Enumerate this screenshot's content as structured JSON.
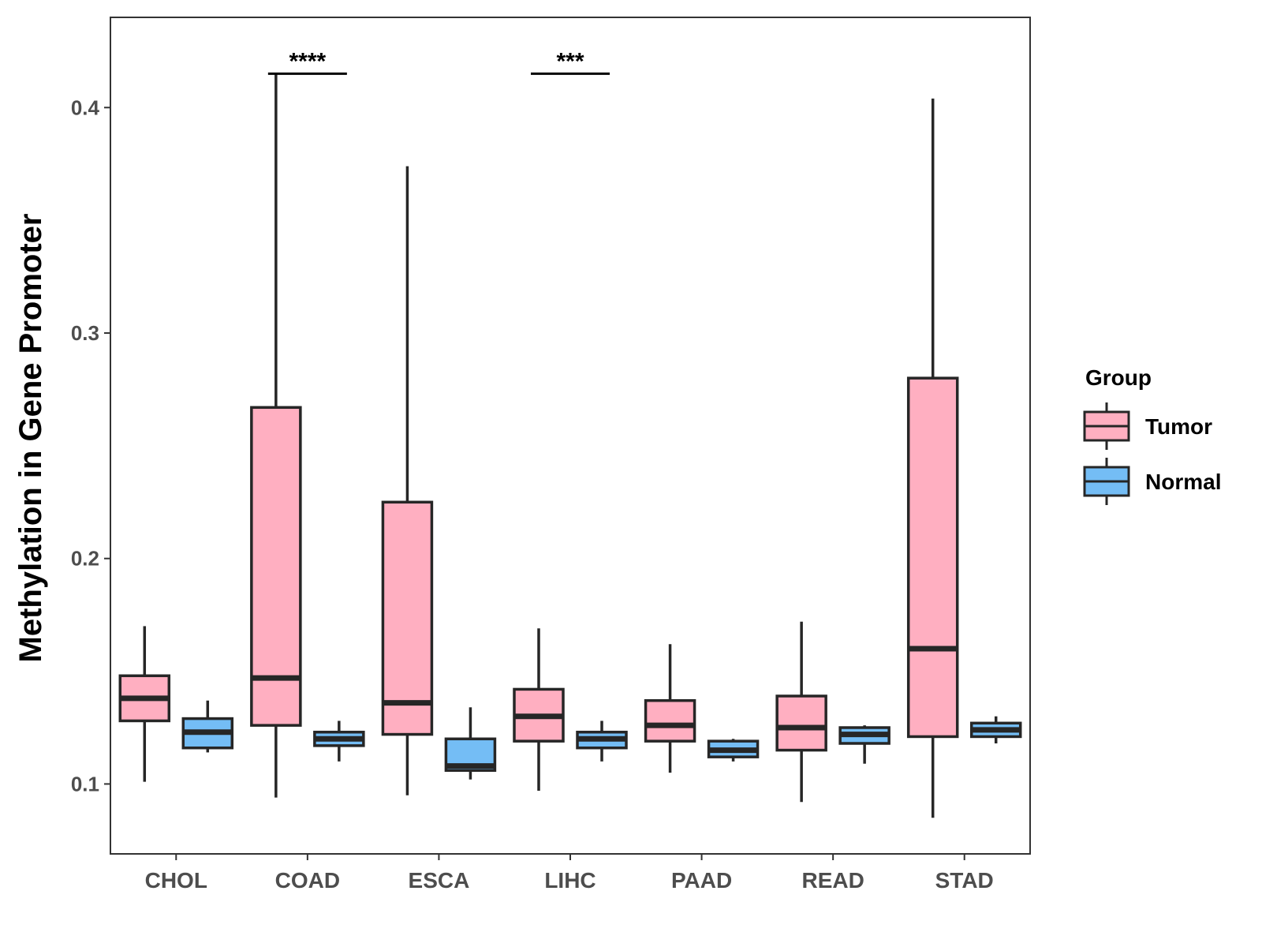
{
  "chart_data": {
    "type": "boxplot",
    "title": "",
    "xlabel": "",
    "ylabel": "Methylation in Gene Promoter",
    "ylim": [
      0.069,
      0.44
    ],
    "yticks": [
      0.1,
      0.2,
      0.3,
      0.4
    ],
    "ytick_labels": [
      "0.1",
      "0.2",
      "0.3",
      "0.4"
    ],
    "categories": [
      "CHOL",
      "COAD",
      "ESCA",
      "LIHC",
      "PAAD",
      "READ",
      "STAD"
    ],
    "series": [
      {
        "name": "Tumor",
        "color": "#ffafc1",
        "boxes": [
          {
            "min": 0.101,
            "q1": 0.128,
            "median": 0.138,
            "q3": 0.148,
            "max": 0.17
          },
          {
            "min": 0.094,
            "q1": 0.126,
            "median": 0.147,
            "q3": 0.267,
            "max": 0.415
          },
          {
            "min": 0.095,
            "q1": 0.122,
            "median": 0.136,
            "q3": 0.225,
            "max": 0.374
          },
          {
            "min": 0.097,
            "q1": 0.119,
            "median": 0.13,
            "q3": 0.142,
            "max": 0.169
          },
          {
            "min": 0.105,
            "q1": 0.119,
            "median": 0.126,
            "q3": 0.137,
            "max": 0.162
          },
          {
            "min": 0.092,
            "q1": 0.115,
            "median": 0.125,
            "q3": 0.139,
            "max": 0.172
          },
          {
            "min": 0.085,
            "q1": 0.121,
            "median": 0.16,
            "q3": 0.28,
            "max": 0.404
          }
        ]
      },
      {
        "name": "Normal",
        "color": "#74bdf5",
        "boxes": [
          {
            "min": 0.114,
            "q1": 0.116,
            "median": 0.123,
            "q3": 0.129,
            "max": 0.137
          },
          {
            "min": 0.11,
            "q1": 0.117,
            "median": 0.12,
            "q3": 0.123,
            "max": 0.128
          },
          {
            "min": 0.102,
            "q1": 0.106,
            "median": 0.108,
            "q3": 0.12,
            "max": 0.134
          },
          {
            "min": 0.11,
            "q1": 0.116,
            "median": 0.12,
            "q3": 0.123,
            "max": 0.128
          },
          {
            "min": 0.11,
            "q1": 0.112,
            "median": 0.115,
            "q3": 0.119,
            "max": 0.12
          },
          {
            "min": 0.109,
            "q1": 0.118,
            "median": 0.122,
            "q3": 0.125,
            "max": 0.126
          },
          {
            "min": 0.118,
            "q1": 0.121,
            "median": 0.124,
            "q3": 0.127,
            "max": 0.13
          }
        ]
      }
    ],
    "significance": [
      {
        "category": "COAD",
        "label": "****",
        "y": 0.415
      },
      {
        "category": "LIHC",
        "label": "***",
        "y": 0.415
      }
    ],
    "legend": {
      "title": "Group",
      "entries": [
        "Tumor",
        "Normal"
      ],
      "position": "right"
    },
    "grid": false
  }
}
